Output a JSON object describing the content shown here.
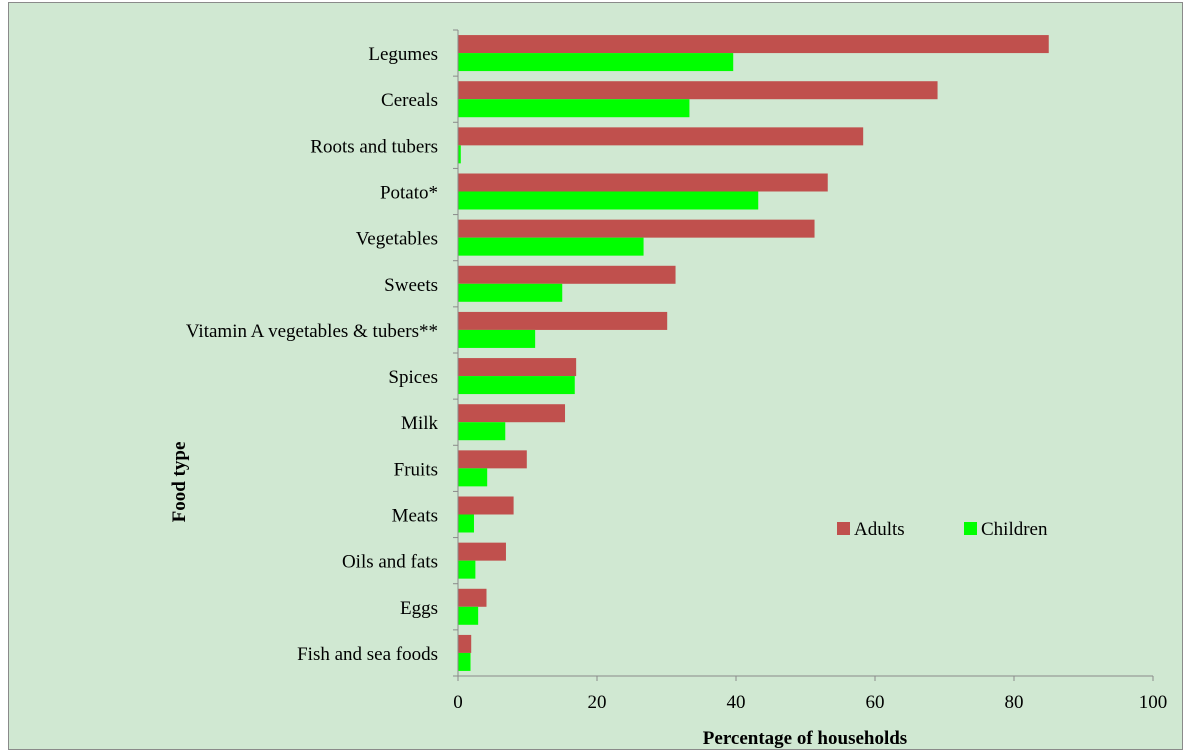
{
  "chart_data": {
    "type": "bar",
    "orientation": "horizontal",
    "title": "",
    "xlabel": "Percentage of households",
    "ylabel": "Food type",
    "xlim": [
      0,
      100
    ],
    "xticks": [
      "0",
      "20",
      "40",
      "60",
      "80",
      "100"
    ],
    "grid": false,
    "legend_position": "lower-right",
    "categories": [
      "Legumes",
      "Cereals",
      "Roots and tubers",
      "Potato*",
      "Vegetables",
      "Sweets",
      "Vitamin A vegetables & tubers**",
      "Spices",
      "Milk",
      "Fruits",
      "Meats",
      "Oils and fats",
      "Eggs",
      "Fish and sea foods"
    ],
    "series": [
      {
        "name": "Adults",
        "color": "#c0504d",
        "values": [
          85,
          69,
          58.3,
          53.2,
          51.3,
          31.3,
          30.1,
          17,
          15.4,
          9.9,
          8,
          6.9,
          4.1,
          1.9
        ]
      },
      {
        "name": "Children",
        "color": "#00ff00",
        "values": [
          39.6,
          33.3,
          0.4,
          43.2,
          26.7,
          15,
          11.1,
          16.8,
          6.8,
          4.2,
          2.3,
          2.5,
          2.9,
          1.8
        ]
      }
    ]
  }
}
